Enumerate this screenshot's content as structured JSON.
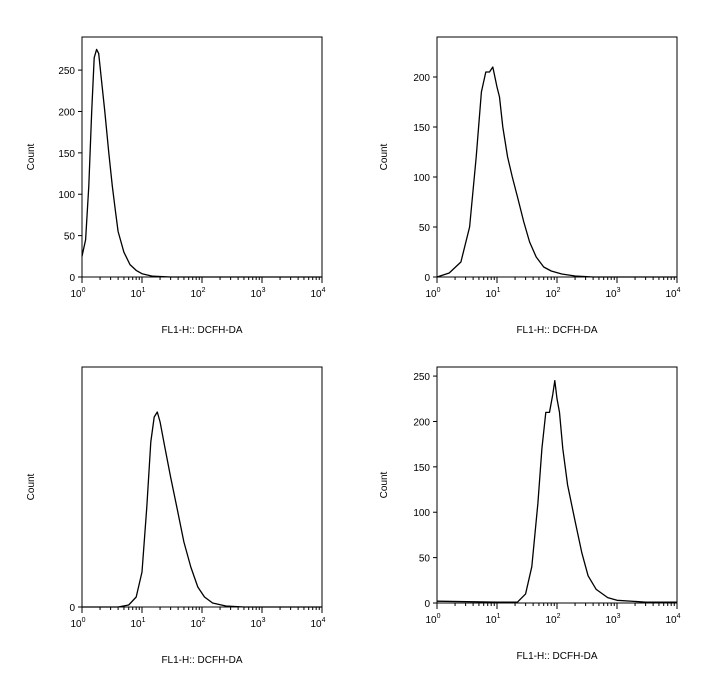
{
  "chart_data": [
    {
      "type": "histogram",
      "xlabel": "FL1-H:: DCFH-DA",
      "ylabel": "Count",
      "x_scale": "log",
      "xlim": [
        1,
        10000
      ],
      "ylim": [
        0,
        290
      ],
      "xticks": [
        "10^0",
        "10^1",
        "10^2",
        "10^3",
        "10^4"
      ],
      "yticks": [
        0,
        50,
        100,
        150,
        200,
        250
      ],
      "curve": [
        [
          1,
          25
        ],
        [
          1.15,
          45
        ],
        [
          1.3,
          110
        ],
        [
          1.45,
          200
        ],
        [
          1.6,
          265
        ],
        [
          1.75,
          275
        ],
        [
          1.9,
          270
        ],
        [
          2.1,
          240
        ],
        [
          2.4,
          200
        ],
        [
          2.8,
          150
        ],
        [
          3.2,
          110
        ],
        [
          3.6,
          80
        ],
        [
          4,
          55
        ],
        [
          5,
          30
        ],
        [
          6.3,
          15
        ],
        [
          8,
          8
        ],
        [
          10,
          4
        ],
        [
          15,
          1
        ],
        [
          30,
          0
        ],
        [
          10000,
          0
        ]
      ]
    },
    {
      "type": "histogram",
      "xlabel": "FL1-H:: DCFH-DA",
      "ylabel": "Count",
      "x_scale": "log",
      "xlim": [
        1,
        10000
      ],
      "ylim": [
        0,
        240
      ],
      "xticks": [
        "10^0",
        "10^1",
        "10^2",
        "10^3",
        "10^4"
      ],
      "yticks": [
        0,
        50,
        100,
        150,
        200
      ],
      "curve": [
        [
          1,
          0
        ],
        [
          1.6,
          4
        ],
        [
          2.5,
          15
        ],
        [
          3.5,
          50
        ],
        [
          4.5,
          120
        ],
        [
          5.5,
          185
        ],
        [
          6.5,
          205
        ],
        [
          7.5,
          205
        ],
        [
          8.5,
          210
        ],
        [
          10,
          190
        ],
        [
          11,
          180
        ],
        [
          12.5,
          150
        ],
        [
          15,
          120
        ],
        [
          18,
          100
        ],
        [
          22,
          80
        ],
        [
          28,
          55
        ],
        [
          35,
          35
        ],
        [
          45,
          20
        ],
        [
          60,
          10
        ],
        [
          80,
          6
        ],
        [
          120,
          3
        ],
        [
          200,
          1
        ],
        [
          400,
          0
        ],
        [
          10000,
          0
        ]
      ]
    },
    {
      "type": "histogram",
      "xlabel": "FL1-H:: DCFH-DA",
      "ylabel": "Count",
      "x_scale": "log",
      "xlim": [
        1,
        10000
      ],
      "ylim": [
        0,
        240
      ],
      "xticks": [
        "10^0",
        "10^1",
        "10^2",
        "10^3",
        "10^4"
      ],
      "yticks": [
        0
      ],
      "curve": [
        [
          1,
          0
        ],
        [
          4,
          0
        ],
        [
          6,
          2
        ],
        [
          8,
          10
        ],
        [
          10,
          35
        ],
        [
          12,
          100
        ],
        [
          14,
          165
        ],
        [
          16,
          190
        ],
        [
          18,
          195
        ],
        [
          20,
          185
        ],
        [
          24,
          160
        ],
        [
          30,
          130
        ],
        [
          38,
          100
        ],
        [
          50,
          65
        ],
        [
          65,
          40
        ],
        [
          85,
          20
        ],
        [
          110,
          10
        ],
        [
          150,
          4
        ],
        [
          250,
          1
        ],
        [
          500,
          0
        ],
        [
          10000,
          0
        ]
      ]
    },
    {
      "type": "histogram",
      "xlabel": "FL1-H:: DCFH-DA",
      "ylabel": "Count",
      "x_scale": "log",
      "xlim": [
        1,
        10000
      ],
      "ylim": [
        0,
        260
      ],
      "xticks": [
        "10^0",
        "10^1",
        "10^2",
        "10^3",
        "10^4"
      ],
      "yticks": [
        0,
        50,
        100,
        150,
        200,
        250
      ],
      "curve": [
        [
          1,
          2
        ],
        [
          10,
          1
        ],
        [
          22,
          1
        ],
        [
          30,
          10
        ],
        [
          38,
          40
        ],
        [
          48,
          110
        ],
        [
          56,
          170
        ],
        [
          65,
          210
        ],
        [
          75,
          210
        ],
        [
          85,
          230
        ],
        [
          92,
          245
        ],
        [
          100,
          225
        ],
        [
          110,
          210
        ],
        [
          125,
          170
        ],
        [
          150,
          130
        ],
        [
          200,
          90
        ],
        [
          260,
          55
        ],
        [
          330,
          30
        ],
        [
          450,
          15
        ],
        [
          700,
          6
        ],
        [
          1000,
          3
        ],
        [
          3000,
          1
        ],
        [
          10000,
          1
        ]
      ]
    }
  ]
}
